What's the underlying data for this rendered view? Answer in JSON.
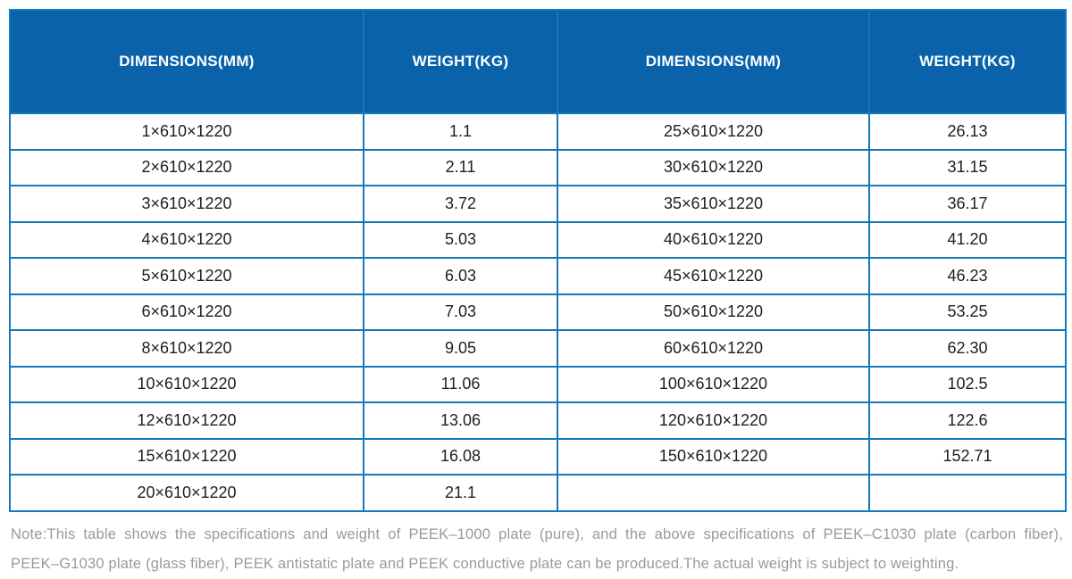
{
  "table": {
    "headers": [
      "DIMENSIONS(MM)",
      "WEIGHT(KG)",
      "DIMENSIONS(MM)",
      "WEIGHT(KG)"
    ],
    "rows": [
      [
        "1×610×1220",
        "1.1",
        "25×610×1220",
        "26.13"
      ],
      [
        "2×610×1220",
        "2.11",
        "30×610×1220",
        "31.15"
      ],
      [
        "3×610×1220",
        "3.72",
        "35×610×1220",
        "36.17"
      ],
      [
        "4×610×1220",
        "5.03",
        "40×610×1220",
        "41.20"
      ],
      [
        "5×610×1220",
        "6.03",
        "45×610×1220",
        "46.23"
      ],
      [
        "6×610×1220",
        "7.03",
        "50×610×1220",
        "53.25"
      ],
      [
        "8×610×1220",
        "9.05",
        "60×610×1220",
        "62.30"
      ],
      [
        "10×610×1220",
        "11.06",
        "100×610×1220",
        "102.5"
      ],
      [
        "12×610×1220",
        "13.06",
        "120×610×1220",
        "122.6"
      ],
      [
        "15×610×1220",
        "16.08",
        "150×610×1220",
        "152.71"
      ],
      [
        "20×610×1220",
        "21.1",
        "",
        ""
      ]
    ]
  },
  "note": {
    "line1": "Note:This table shows the specifications and weight of PEEK–1000 plate (pure), and the above specifications of PEEK–C1030 plate (carbon fiber),",
    "line2": "PEEK–G1030 plate (glass fiber), PEEK antistatic plate and PEEK conductive plate can be produced.The actual weight is subject to weighting."
  },
  "colors": {
    "header_bg": "#0962aa",
    "border_blue": "#1478ba",
    "cell_text": "#1e1e1e",
    "note_text": "#9a9a9a"
  }
}
